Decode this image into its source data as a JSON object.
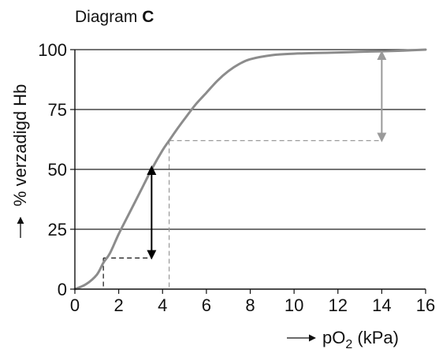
{
  "title": {
    "prefix": "Diagram",
    "letter": "C"
  },
  "chart_data": {
    "type": "line",
    "title": "Diagram C",
    "xlabel": "pO2 (kPa)",
    "xlabel_parts": {
      "main": "pO",
      "sub": "2",
      "unit": " (kPa)"
    },
    "ylabel": "% verzadigd Hb",
    "xlim": [
      0,
      16
    ],
    "ylim": [
      0,
      100
    ],
    "x_ticks": [
      0,
      2,
      4,
      6,
      8,
      10,
      12,
      14,
      16
    ],
    "y_ticks": [
      0,
      25,
      50,
      75,
      100
    ],
    "grid": "horizontal",
    "series": [
      {
        "color": "#8c8c8c",
        "x": [
          0,
          0.5,
          1,
          1.3,
          1.6,
          2,
          2.5,
          3,
          3.5,
          4,
          4.3,
          4.6,
          5,
          5.5,
          6,
          6.5,
          7,
          7.5,
          8,
          9,
          10,
          11,
          12,
          13,
          14,
          15,
          16
        ],
        "y": [
          0,
          2,
          6,
          11,
          15,
          23,
          32,
          41,
          50,
          58,
          62,
          66,
          71,
          77,
          82,
          87,
          91,
          94,
          96,
          97.7,
          98.3,
          98.6,
          98.8,
          99.1,
          99.3,
          99.6,
          100
        ]
      }
    ],
    "dashed_guides": [
      {
        "x_from": 1.3,
        "x_to": 3.5,
        "y": 13
      },
      {
        "x_from": 4.3,
        "x_to": 14,
        "y": 62
      }
    ],
    "arrows": [
      {
        "x": 3.5,
        "y_from": 13,
        "y_to": 51,
        "color": "#000000"
      },
      {
        "x": 14,
        "y_from": 62,
        "y_to": 99,
        "color": "#9a9a9a"
      }
    ],
    "arrow_markers": {
      "axis_arrow_color": "#111111"
    }
  }
}
